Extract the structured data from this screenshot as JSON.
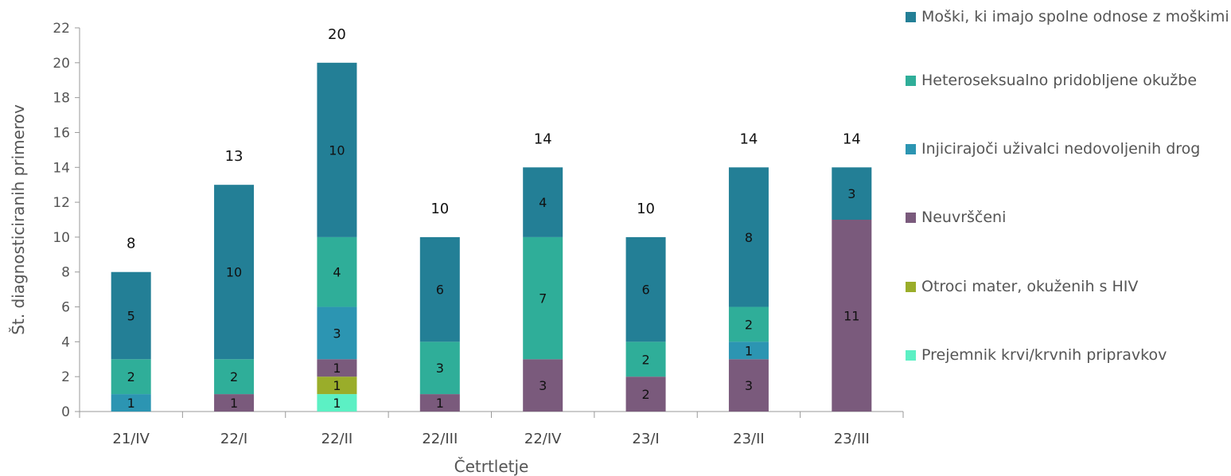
{
  "chart_data": {
    "type": "bar",
    "stacked": true,
    "categories": [
      "21/IV",
      "22/I",
      "22/II",
      "22/III",
      "22/IV",
      "23/I",
      "23/II",
      "23/III"
    ],
    "series": [
      {
        "name": "Prejemnik krvi/krvnih pripravkov",
        "color": "#5cf0c4",
        "values": [
          0,
          0,
          1,
          0,
          0,
          0,
          0,
          0
        ]
      },
      {
        "name": "Otroci mater, okuženih s HIV",
        "color": "#9aad2a",
        "values": [
          0,
          0,
          1,
          0,
          0,
          0,
          0,
          0
        ]
      },
      {
        "name": "Neuvrščeni",
        "color": "#7a5a7c",
        "values": [
          0,
          1,
          1,
          1,
          3,
          2,
          3,
          11
        ]
      },
      {
        "name": "Injicirajoči uživalci nedovoljenih drog",
        "color": "#2c95b2",
        "values": [
          1,
          0,
          3,
          0,
          0,
          0,
          1,
          0
        ]
      },
      {
        "name": "Heteroseksualno pridobljene okužbe",
        "color": "#2fae99",
        "values": [
          2,
          2,
          4,
          3,
          7,
          2,
          2,
          0
        ]
      },
      {
        "name": "Moški, ki imajo spolne odnose z moškimi",
        "color": "#237f96",
        "values": [
          5,
          10,
          10,
          6,
          4,
          6,
          8,
          3
        ]
      }
    ],
    "totals": [
      8,
      13,
      20,
      10,
      14,
      10,
      14,
      14
    ],
    "xlabel": "Četrtletje",
    "ylabel": "Št. diagnosticiranih primerov",
    "ylim": [
      0,
      22
    ],
    "yticks": [
      0,
      2,
      4,
      6,
      8,
      10,
      12,
      14,
      16,
      18,
      20,
      22
    ],
    "grid": false,
    "legend": "right"
  }
}
